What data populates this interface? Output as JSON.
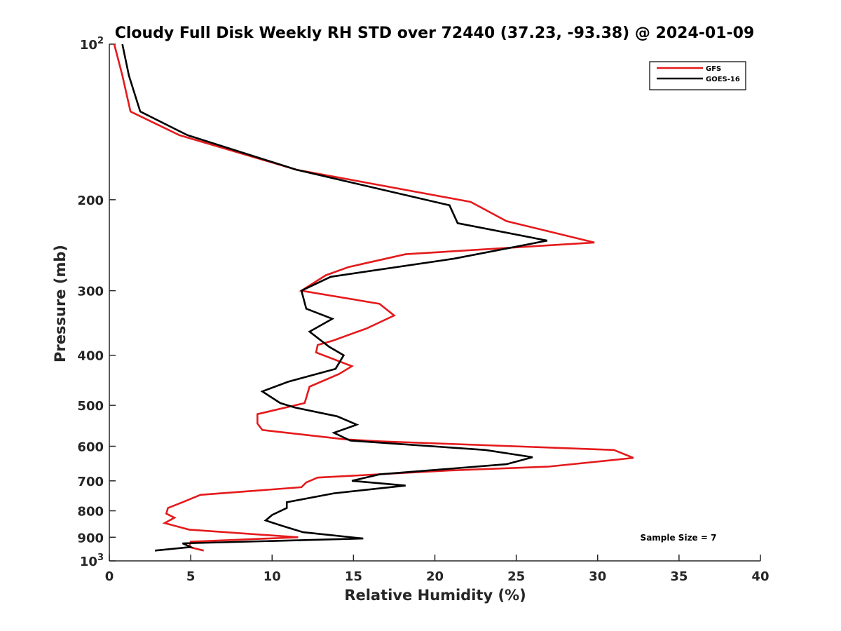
{
  "chart_data": {
    "type": "line",
    "title": "Cloudy Full Disk Weekly RH STD over 72440 (37.23, -93.38) @ 2024-01-09",
    "xlabel": "Relative Humidity (%)",
    "ylabel": "Pressure (mb)",
    "xlim": [
      0,
      40
    ],
    "ylim": [
      100,
      1000
    ],
    "yscale": "log",
    "y_reversed": true,
    "grid": false,
    "legend_position": "top-right",
    "x_ticks": [
      "0",
      "5",
      "10",
      "15",
      "20",
      "25",
      "30",
      "35",
      "40"
    ],
    "y_ticks": [
      {
        "value": 100,
        "label": "10",
        "sup": "2"
      },
      {
        "value": 200,
        "label": "200",
        "sup": ""
      },
      {
        "value": 300,
        "label": "300",
        "sup": ""
      },
      {
        "value": 400,
        "label": "400",
        "sup": ""
      },
      {
        "value": 500,
        "label": "500",
        "sup": ""
      },
      {
        "value": 600,
        "label": "600",
        "sup": ""
      },
      {
        "value": 700,
        "label": "700",
        "sup": ""
      },
      {
        "value": 800,
        "label": "800",
        "sup": ""
      },
      {
        "value": 900,
        "label": "900",
        "sup": ""
      },
      {
        "value": 1000,
        "label": "10",
        "sup": "3"
      }
    ],
    "series": [
      {
        "name": "GFS",
        "color": "#e41a1c",
        "points": [
          [
            0.3,
            100
          ],
          [
            0.8,
            115
          ],
          [
            1.3,
            135
          ],
          [
            4.3,
            150
          ],
          [
            11.5,
            175
          ],
          [
            22.2,
            202
          ],
          [
            24.4,
            220
          ],
          [
            29.8,
            242
          ],
          [
            18.2,
            255
          ],
          [
            14.7,
            270
          ],
          [
            13.3,
            280
          ],
          [
            11.8,
            300
          ],
          [
            16.6,
            318
          ],
          [
            17.5,
            335
          ],
          [
            15.8,
            355
          ],
          [
            13.7,
            375
          ],
          [
            12.8,
            382
          ],
          [
            12.7,
            395
          ],
          [
            14.9,
            420
          ],
          [
            14.1,
            435
          ],
          [
            12.3,
            460
          ],
          [
            12.0,
            495
          ],
          [
            9.1,
            520
          ],
          [
            9.1,
            542
          ],
          [
            9.4,
            558
          ],
          [
            14.5,
            582
          ],
          [
            16.7,
            587
          ],
          [
            31.0,
            610
          ],
          [
            32.2,
            632
          ],
          [
            27.0,
            657
          ],
          [
            21.0,
            668
          ],
          [
            12.8,
            690
          ],
          [
            12.1,
            705
          ],
          [
            11.8,
            720
          ],
          [
            5.6,
            745
          ],
          [
            4.5,
            770
          ],
          [
            3.6,
            790
          ],
          [
            3.5,
            810
          ],
          [
            4.0,
            825
          ],
          [
            3.4,
            845
          ],
          [
            4.9,
            870
          ],
          [
            11.6,
            900
          ],
          [
            5.0,
            918
          ],
          [
            4.9,
            940
          ],
          [
            5.8,
            955
          ]
        ]
      },
      {
        "name": "GOES-16",
        "color": "#000000",
        "points": [
          [
            0.8,
            100
          ],
          [
            1.2,
            115
          ],
          [
            1.9,
            135
          ],
          [
            4.8,
            150
          ],
          [
            11.5,
            175
          ],
          [
            20.9,
            205
          ],
          [
            21.4,
            222
          ],
          [
            26.9,
            240
          ],
          [
            21.2,
            260
          ],
          [
            13.6,
            282
          ],
          [
            11.8,
            300
          ],
          [
            12.1,
            325
          ],
          [
            13.7,
            340
          ],
          [
            12.3,
            360
          ],
          [
            13.5,
            385
          ],
          [
            14.4,
            400
          ],
          [
            13.9,
            425
          ],
          [
            11.0,
            450
          ],
          [
            9.4,
            470
          ],
          [
            10.5,
            495
          ],
          [
            11.4,
            505
          ],
          [
            14.0,
            525
          ],
          [
            15.2,
            545
          ],
          [
            13.8,
            565
          ],
          [
            14.8,
            585
          ],
          [
            23.1,
            610
          ],
          [
            26.0,
            630
          ],
          [
            24.4,
            650
          ],
          [
            16.6,
            680
          ],
          [
            14.9,
            700
          ],
          [
            18.2,
            715
          ],
          [
            13.8,
            740
          ],
          [
            10.9,
            770
          ],
          [
            10.9,
            790
          ],
          [
            10.0,
            815
          ],
          [
            9.6,
            835
          ],
          [
            10.6,
            855
          ],
          [
            11.9,
            880
          ],
          [
            15.6,
            905
          ],
          [
            4.5,
            925
          ],
          [
            5.0,
            940
          ],
          [
            2.8,
            955
          ]
        ]
      }
    ],
    "annotations": [
      "Sample Size = 7"
    ]
  }
}
